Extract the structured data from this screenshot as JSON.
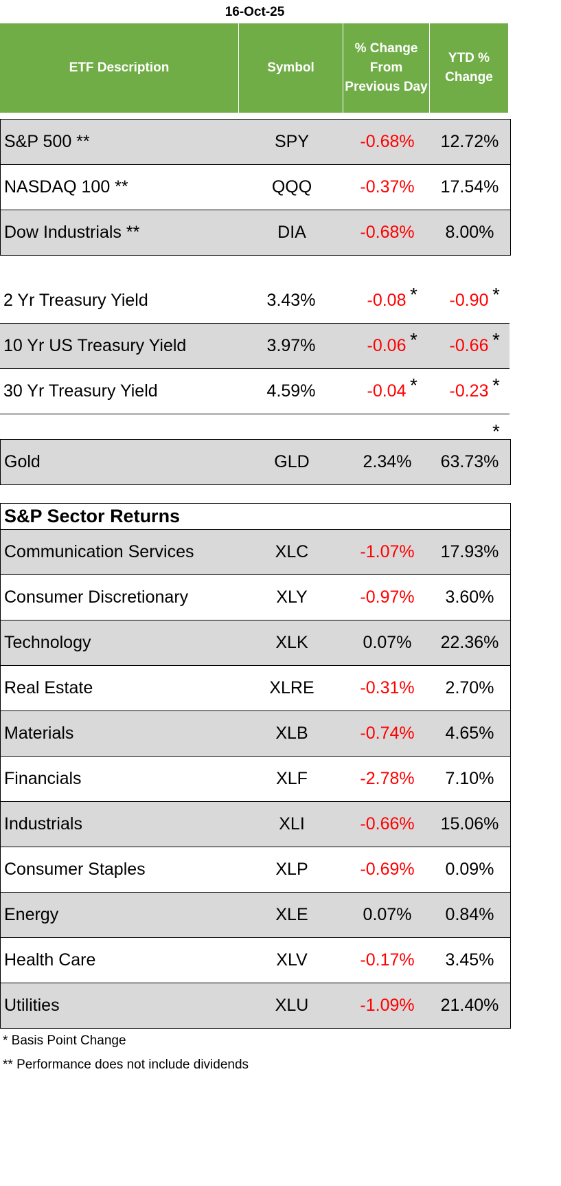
{
  "date": "16-Oct-25",
  "header": {
    "col1": "ETF Description",
    "col2": "Symbol",
    "col3_line1": "% Change",
    "col3_line2": "From",
    "col3_line3": "Previous Day",
    "col4_line1": "YTD %",
    "col4_line2": "Change"
  },
  "indices": [
    {
      "desc": "S&P 500 **",
      "symbol": "SPY",
      "change": "-0.68%",
      "ytd": "12.72%"
    },
    {
      "desc": "NASDAQ 100 **",
      "symbol": "QQQ",
      "change": "-0.37%",
      "ytd": "17.54%"
    },
    {
      "desc": "Dow Industrials **",
      "symbol": "DIA",
      "change": "-0.68%",
      "ytd": "8.00%"
    }
  ],
  "treasuries": [
    {
      "desc": "2 Yr Treasury Yield",
      "symbol": "3.43%",
      "change": "-0.08",
      "ytd": "-0.90"
    },
    {
      "desc": "10 Yr US Treasury Yield",
      "symbol": "3.97%",
      "change": "-0.06",
      "ytd": "-0.66"
    },
    {
      "desc": "30 Yr Treasury Yield",
      "symbol": "4.59%",
      "change": "-0.04",
      "ytd": "-0.23"
    }
  ],
  "star": "*",
  "gold": {
    "desc": "Gold",
    "symbol": "GLD",
    "change": "2.34%",
    "ytd": "63.73%"
  },
  "sector_title": "S&P Sector Returns",
  "sectors": [
    {
      "desc": "Communication Services",
      "symbol": "XLC",
      "change": "-1.07%",
      "ytd": "17.93%"
    },
    {
      "desc": "Consumer Discretionary",
      "symbol": "XLY",
      "change": "-0.97%",
      "ytd": "3.60%"
    },
    {
      "desc": "Technology",
      "symbol": "XLK",
      "change": "0.07%",
      "ytd": "22.36%"
    },
    {
      "desc": "Real Estate",
      "symbol": "XLRE",
      "change": "-0.31%",
      "ytd": "2.70%"
    },
    {
      "desc": "Materials",
      "symbol": "XLB",
      "change": "-0.74%",
      "ytd": "4.65%"
    },
    {
      "desc": "Financials",
      "symbol": "XLF",
      "change": "-2.78%",
      "ytd": "7.10%"
    },
    {
      "desc": "Industrials",
      "symbol": "XLI",
      "change": "-0.66%",
      "ytd": "15.06%"
    },
    {
      "desc": "Consumer Staples",
      "symbol": "XLP",
      "change": "-0.69%",
      "ytd": "0.09%"
    },
    {
      "desc": "Energy",
      "symbol": "XLE",
      "change": "0.07%",
      "ytd": "0.84%"
    },
    {
      "desc": "Health Care",
      "symbol": "XLV",
      "change": "-0.17%",
      "ytd": "3.45%"
    },
    {
      "desc": "Utilities",
      "symbol": "XLU",
      "change": "-1.09%",
      "ytd": "21.40%"
    }
  ],
  "footnotes": {
    "basis": "* Basis Point Change",
    "dividends": "** Performance does not include dividends"
  },
  "colors": {
    "header_bg": "#70ad47",
    "negative": "#ff0000",
    "shaded_row": "#d9d9d9"
  }
}
